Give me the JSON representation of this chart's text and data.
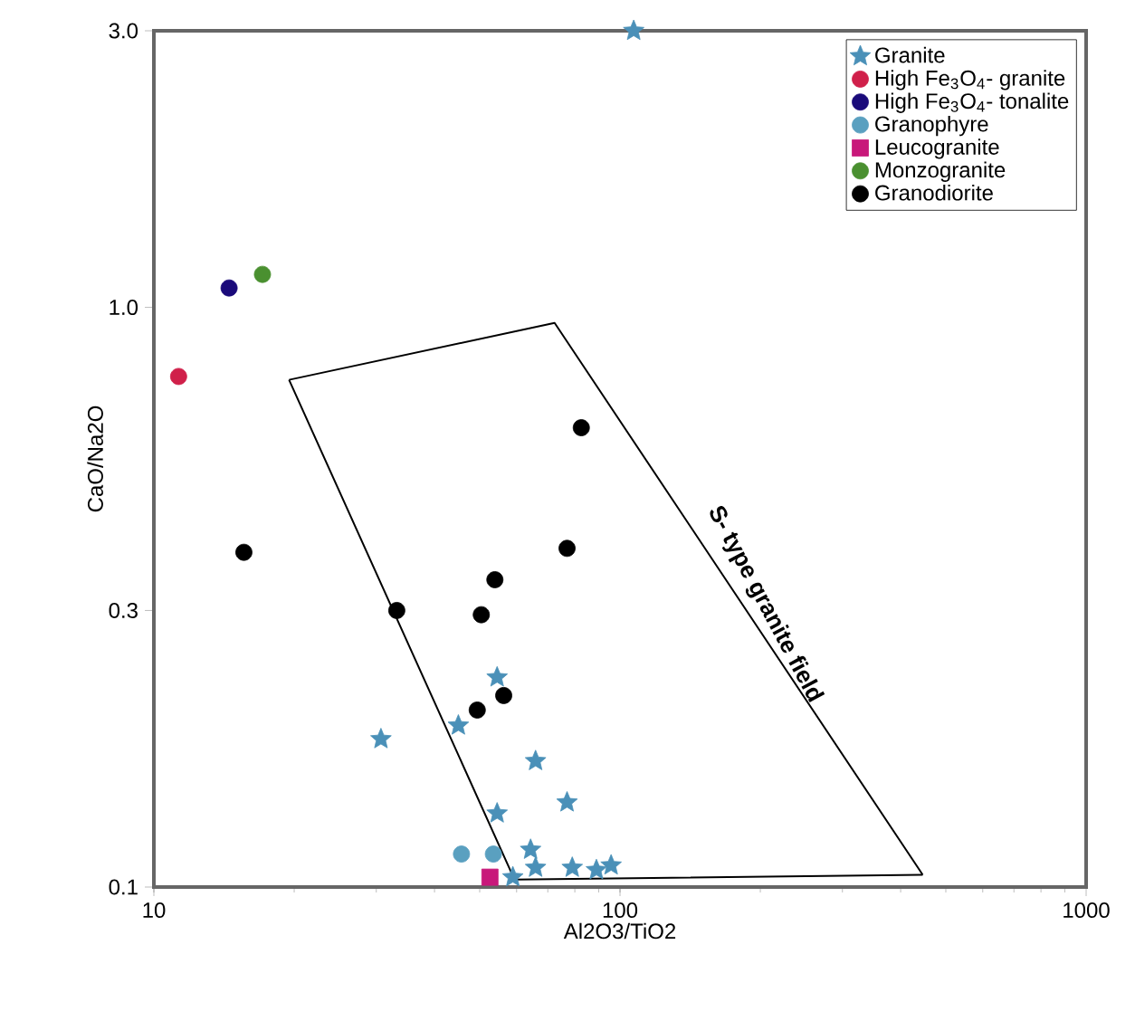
{
  "chart_data": {
    "type": "scatter",
    "xlabel": "Al2O3/TiO2",
    "ylabel": "CaO/Na2O",
    "log": "xy",
    "grid": false,
    "legend": "top right",
    "xlim": [
      10,
      1000
    ],
    "ylim": [
      0.1,
      3.0
    ],
    "xticks": [
      10,
      100,
      1000
    ],
    "yticks": [
      0.1,
      0.3,
      {
        "value": 1,
        "label": "1.0"
      },
      {
        "value": 3,
        "label": "3.0"
      }
    ],
    "annotations": [
      "S- type granite field"
    ],
    "series": [
      {
        "type": "line",
        "color": "#000000",
        "marker": "none",
        "x": [
          19.5,
          72.4,
          446
        ],
        "values": [
          0.75,
          0.94,
          0.105
        ]
      },
      {
        "type": "line",
        "color": "#000000",
        "marker": "none",
        "x": [
          19.5,
          59.4,
          446
        ],
        "values": [
          0.75,
          0.103,
          0.105
        ]
      },
      {
        "name": "Granite",
        "color": "#4a90b8",
        "marker": "star",
        "x": [
          30.7,
          45,
          54.5,
          65.9,
          77,
          54.5,
          64.3,
          65.9,
          58.9,
          79,
          89,
          95.7,
          107
        ],
        "values": [
          0.18,
          0.19,
          0.23,
          0.165,
          0.14,
          0.134,
          0.116,
          0.108,
          0.104,
          0.108,
          0.107,
          0.109,
          3.0
        ]
      },
      {
        "name": "High Fe$_{3}$O$_{4}$- granite",
        "color": "#d0204a",
        "marker": "circle",
        "x": [
          11.3
        ],
        "values": [
          0.76
        ]
      },
      {
        "name": "High Fe$_{3}$O$_{4}$- tonalite",
        "color": "#1a0a7a",
        "marker": "circle",
        "x": [
          14.5
        ],
        "values": [
          1.08
        ]
      },
      {
        "name": "Granophyre",
        "color": "#5aa0c0",
        "marker": "circle",
        "x": [
          45.7,
          53.5
        ],
        "values": [
          0.114,
          0.114
        ]
      },
      {
        "name": "Leucogranite",
        "color": "#c8187a",
        "marker": "square",
        "x": [
          52.6
        ],
        "values": [
          0.104
        ]
      },
      {
        "name": "Monzogranite",
        "color": "#4a9030",
        "marker": "circle",
        "x": [
          17.1
        ],
        "values": [
          1.14
        ]
      },
      {
        "name": "Granodiorite",
        "color": "#000000",
        "marker": "circle",
        "x": [
          15.6,
          33.2,
          50.4,
          53.9,
          77,
          49.4,
          56.3,
          82.6
        ],
        "values": [
          0.378,
          0.3,
          0.295,
          0.339,
          0.384,
          0.202,
          0.214,
          0.62
        ]
      }
    ]
  }
}
